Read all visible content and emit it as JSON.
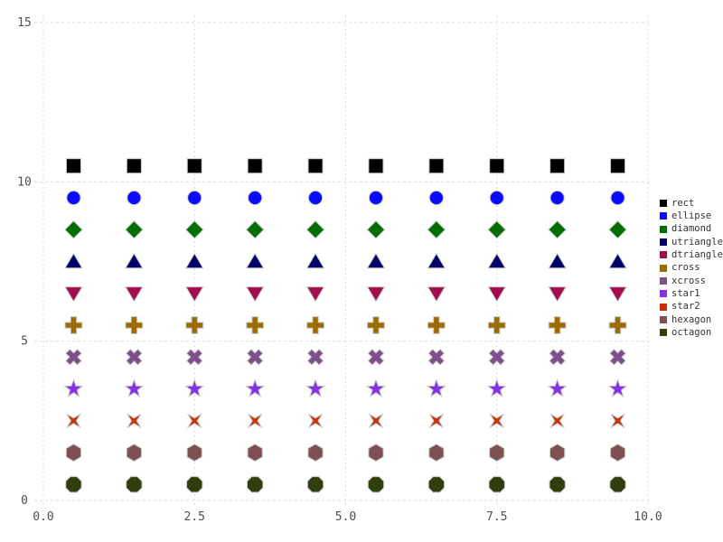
{
  "chart_data": {
    "type": "scatter",
    "title": "",
    "xlabel": "",
    "ylabel": "",
    "xlim": [
      0,
      10
    ],
    "ylim": [
      0,
      15
    ],
    "x_ticks": [
      {
        "value": 0,
        "label": "0.0"
      },
      {
        "value": 2.5,
        "label": "2.5"
      },
      {
        "value": 5,
        "label": "5.0"
      },
      {
        "value": 7.5,
        "label": "7.5"
      },
      {
        "value": 10,
        "label": "10.0"
      }
    ],
    "y_ticks": [
      {
        "value": 0,
        "label": "0"
      },
      {
        "value": 5,
        "label": "5"
      },
      {
        "value": 10,
        "label": "10"
      },
      {
        "value": 15,
        "label": "15"
      }
    ],
    "grid": "dashed",
    "legend_position": "right",
    "x": [
      0.5,
      1.5,
      2.5,
      3.5,
      4.5,
      5.5,
      6.5,
      7.5,
      8.5,
      9.5
    ],
    "series": [
      {
        "name": "rect",
        "marker": "rect",
        "y": 10.5,
        "color": "#000000"
      },
      {
        "name": "ellipse",
        "marker": "ellipse",
        "y": 9.5,
        "color": "#0a0aff"
      },
      {
        "name": "diamond",
        "marker": "diamond",
        "y": 8.5,
        "color": "#006e00"
      },
      {
        "name": "utriangle",
        "marker": "utriangle",
        "y": 7.5,
        "color": "#000068"
      },
      {
        "name": "dtriangle",
        "marker": "dtriangle",
        "y": 6.5,
        "color": "#a50c4e"
      },
      {
        "name": "cross",
        "marker": "cross",
        "y": 5.5,
        "color": "#9c6c00"
      },
      {
        "name": "xcross",
        "marker": "xcross",
        "y": 4.5,
        "color": "#7e4f8a"
      },
      {
        "name": "star1",
        "marker": "star1",
        "y": 3.5,
        "color": "#8531e8"
      },
      {
        "name": "star2",
        "marker": "star2",
        "y": 2.5,
        "color": "#c53306"
      },
      {
        "name": "hexagon",
        "marker": "hexagon",
        "y": 1.5,
        "color": "#7e5051"
      },
      {
        "name": "octagon",
        "marker": "octagon",
        "y": 0.5,
        "color": "#303d0c"
      }
    ],
    "colors": {
      "background": "#ffffff",
      "grid": "#dadae4",
      "tick_label": "#4f4f4f",
      "legend_text": "#333333",
      "marker_stroke": "#c9c9c9"
    }
  }
}
